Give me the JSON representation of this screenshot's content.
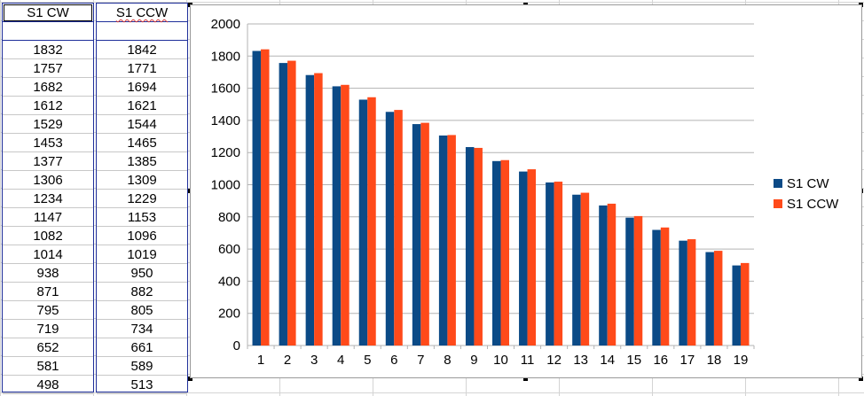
{
  "sheet": {
    "columns": [
      {
        "header": "S1 CW",
        "values": [
          "1832",
          "1757",
          "1682",
          "1612",
          "1529",
          "1453",
          "1377",
          "1306",
          "1234",
          "1147",
          "1082",
          "1014",
          "938",
          "871",
          "795",
          "719",
          "652",
          "581",
          "498"
        ]
      },
      {
        "header": "S1 CCW",
        "values": [
          "1842",
          "1771",
          "1694",
          "1621",
          "1544",
          "1465",
          "1385",
          "1309",
          "1229",
          "1153",
          "1096",
          "1019",
          "950",
          "882",
          "805",
          "734",
          "661",
          "589",
          "513"
        ]
      }
    ]
  },
  "colors": {
    "series_cw": "#0b4a86",
    "series_ccw": "#ff4a1a",
    "gridline": "#b3b3b3",
    "selection_border": "#1f2f9a"
  },
  "chart_data": {
    "type": "bar",
    "categories": [
      "1",
      "2",
      "3",
      "4",
      "5",
      "6",
      "7",
      "8",
      "9",
      "10",
      "11",
      "12",
      "13",
      "14",
      "15",
      "16",
      "17",
      "18",
      "19"
    ],
    "series": [
      {
        "name": "S1 CW",
        "values": [
          1832,
          1757,
          1682,
          1612,
          1529,
          1453,
          1377,
          1306,
          1234,
          1147,
          1082,
          1014,
          938,
          871,
          795,
          719,
          652,
          581,
          498
        ]
      },
      {
        "name": "S1 CCW",
        "values": [
          1842,
          1771,
          1694,
          1621,
          1544,
          1465,
          1385,
          1309,
          1229,
          1153,
          1096,
          1019,
          950,
          882,
          805,
          734,
          661,
          589,
          513
        ]
      }
    ],
    "ylim": [
      0,
      2000
    ],
    "yticks": [
      "0",
      "200",
      "400",
      "600",
      "800",
      "1000",
      "1200",
      "1400",
      "1600",
      "1800",
      "2000"
    ],
    "grid": true,
    "legend": "right"
  }
}
